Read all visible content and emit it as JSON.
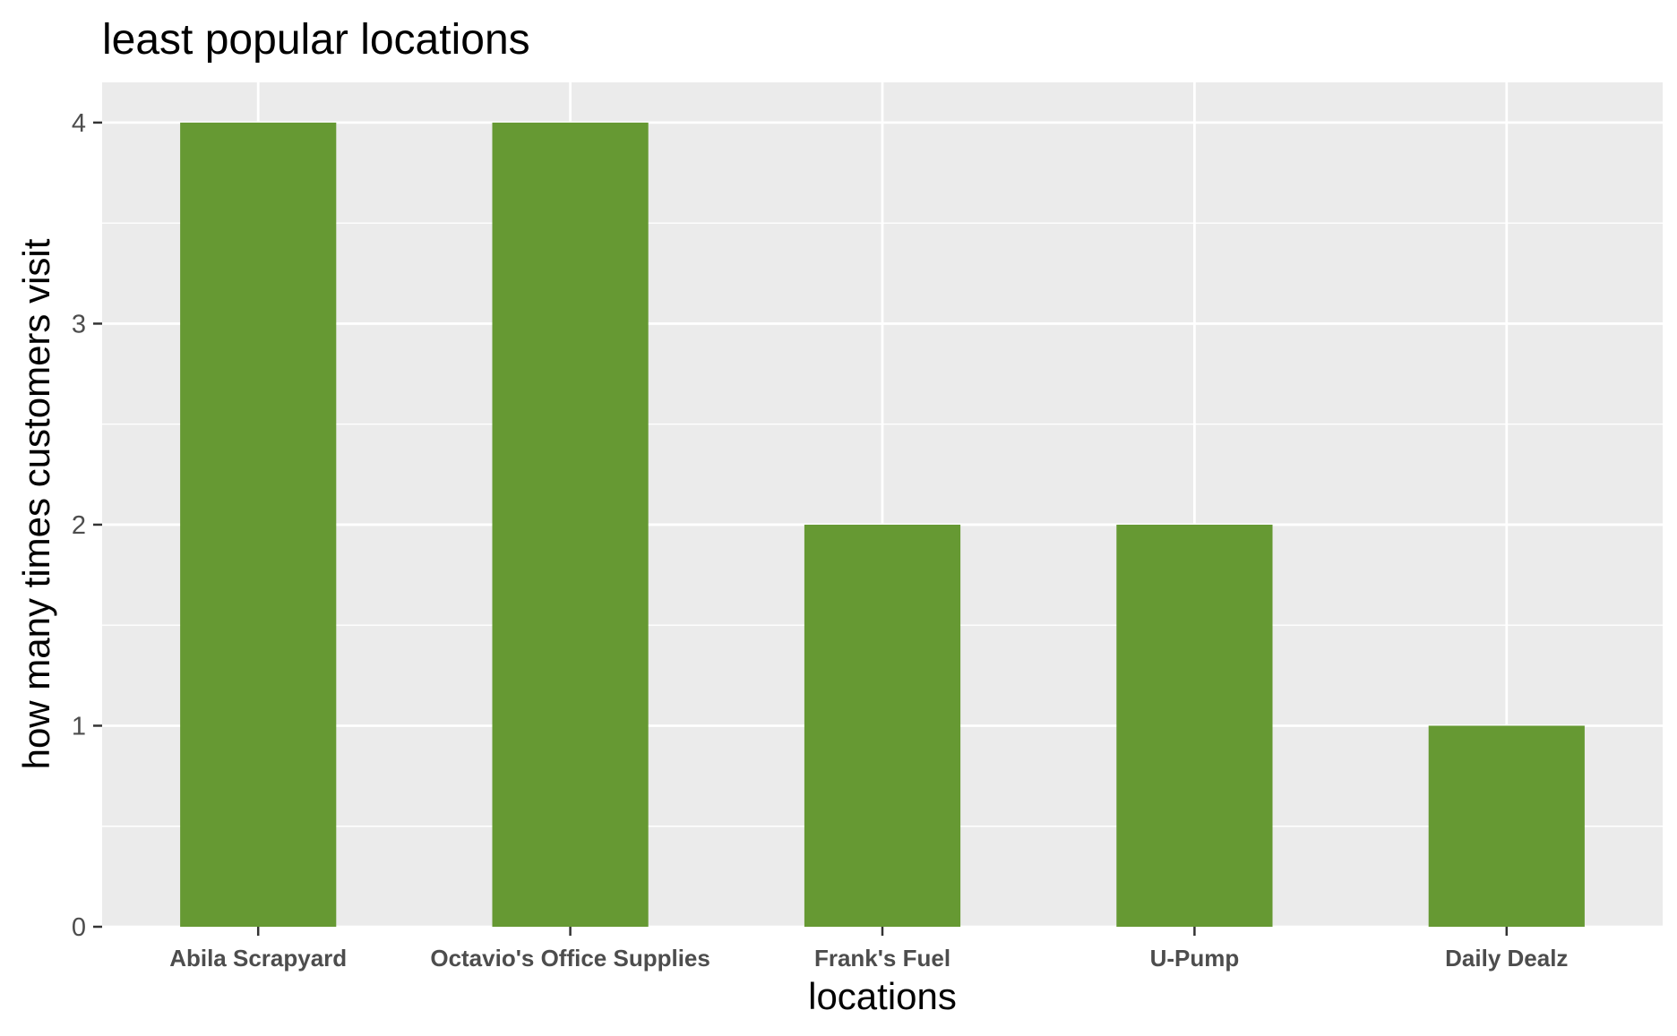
{
  "chart_data": {
    "type": "bar",
    "title": "least popular locations",
    "xlabel": "locations",
    "ylabel": "how many times customers visit",
    "categories": [
      "Abila Scrapyard",
      "Octavio's Office Supplies",
      "Frank's Fuel",
      "U-Pump",
      "Daily Dealz"
    ],
    "values": [
      4,
      4,
      2,
      2,
      1
    ],
    "ylim": [
      0,
      4.2
    ],
    "yticks": [
      0,
      1,
      2,
      3,
      4
    ],
    "grid": true,
    "legend": "none",
    "colors": {
      "bar": "#669933",
      "panel_background": "#ebebeb",
      "gridline": "#ffffff",
      "tick_text": "#4d4d4d",
      "tick_mark": "#333333"
    }
  }
}
